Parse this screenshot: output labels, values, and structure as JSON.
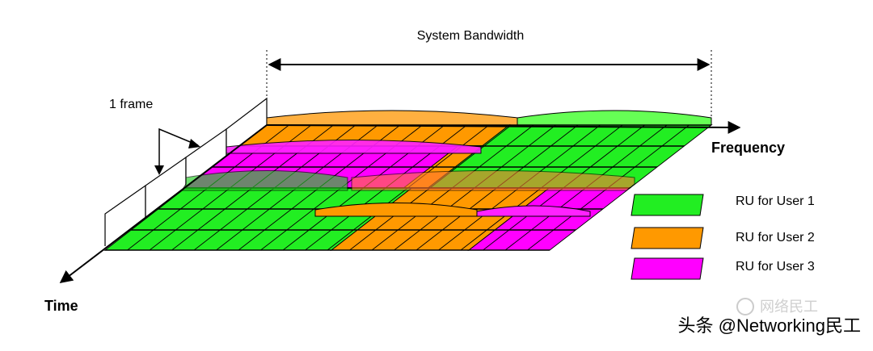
{
  "diagram": {
    "bandwidth_label": "System Bandwidth",
    "frame_label": "1 frame",
    "frequency_axis": "Frequency",
    "time_axis": "Time",
    "legend": [
      "RU for User 1",
      "RU for User 2",
      "RU for User 3"
    ],
    "watermark": {
      "logo_text": "网络民工",
      "caption": "头条 @Networking民工"
    }
  }
}
